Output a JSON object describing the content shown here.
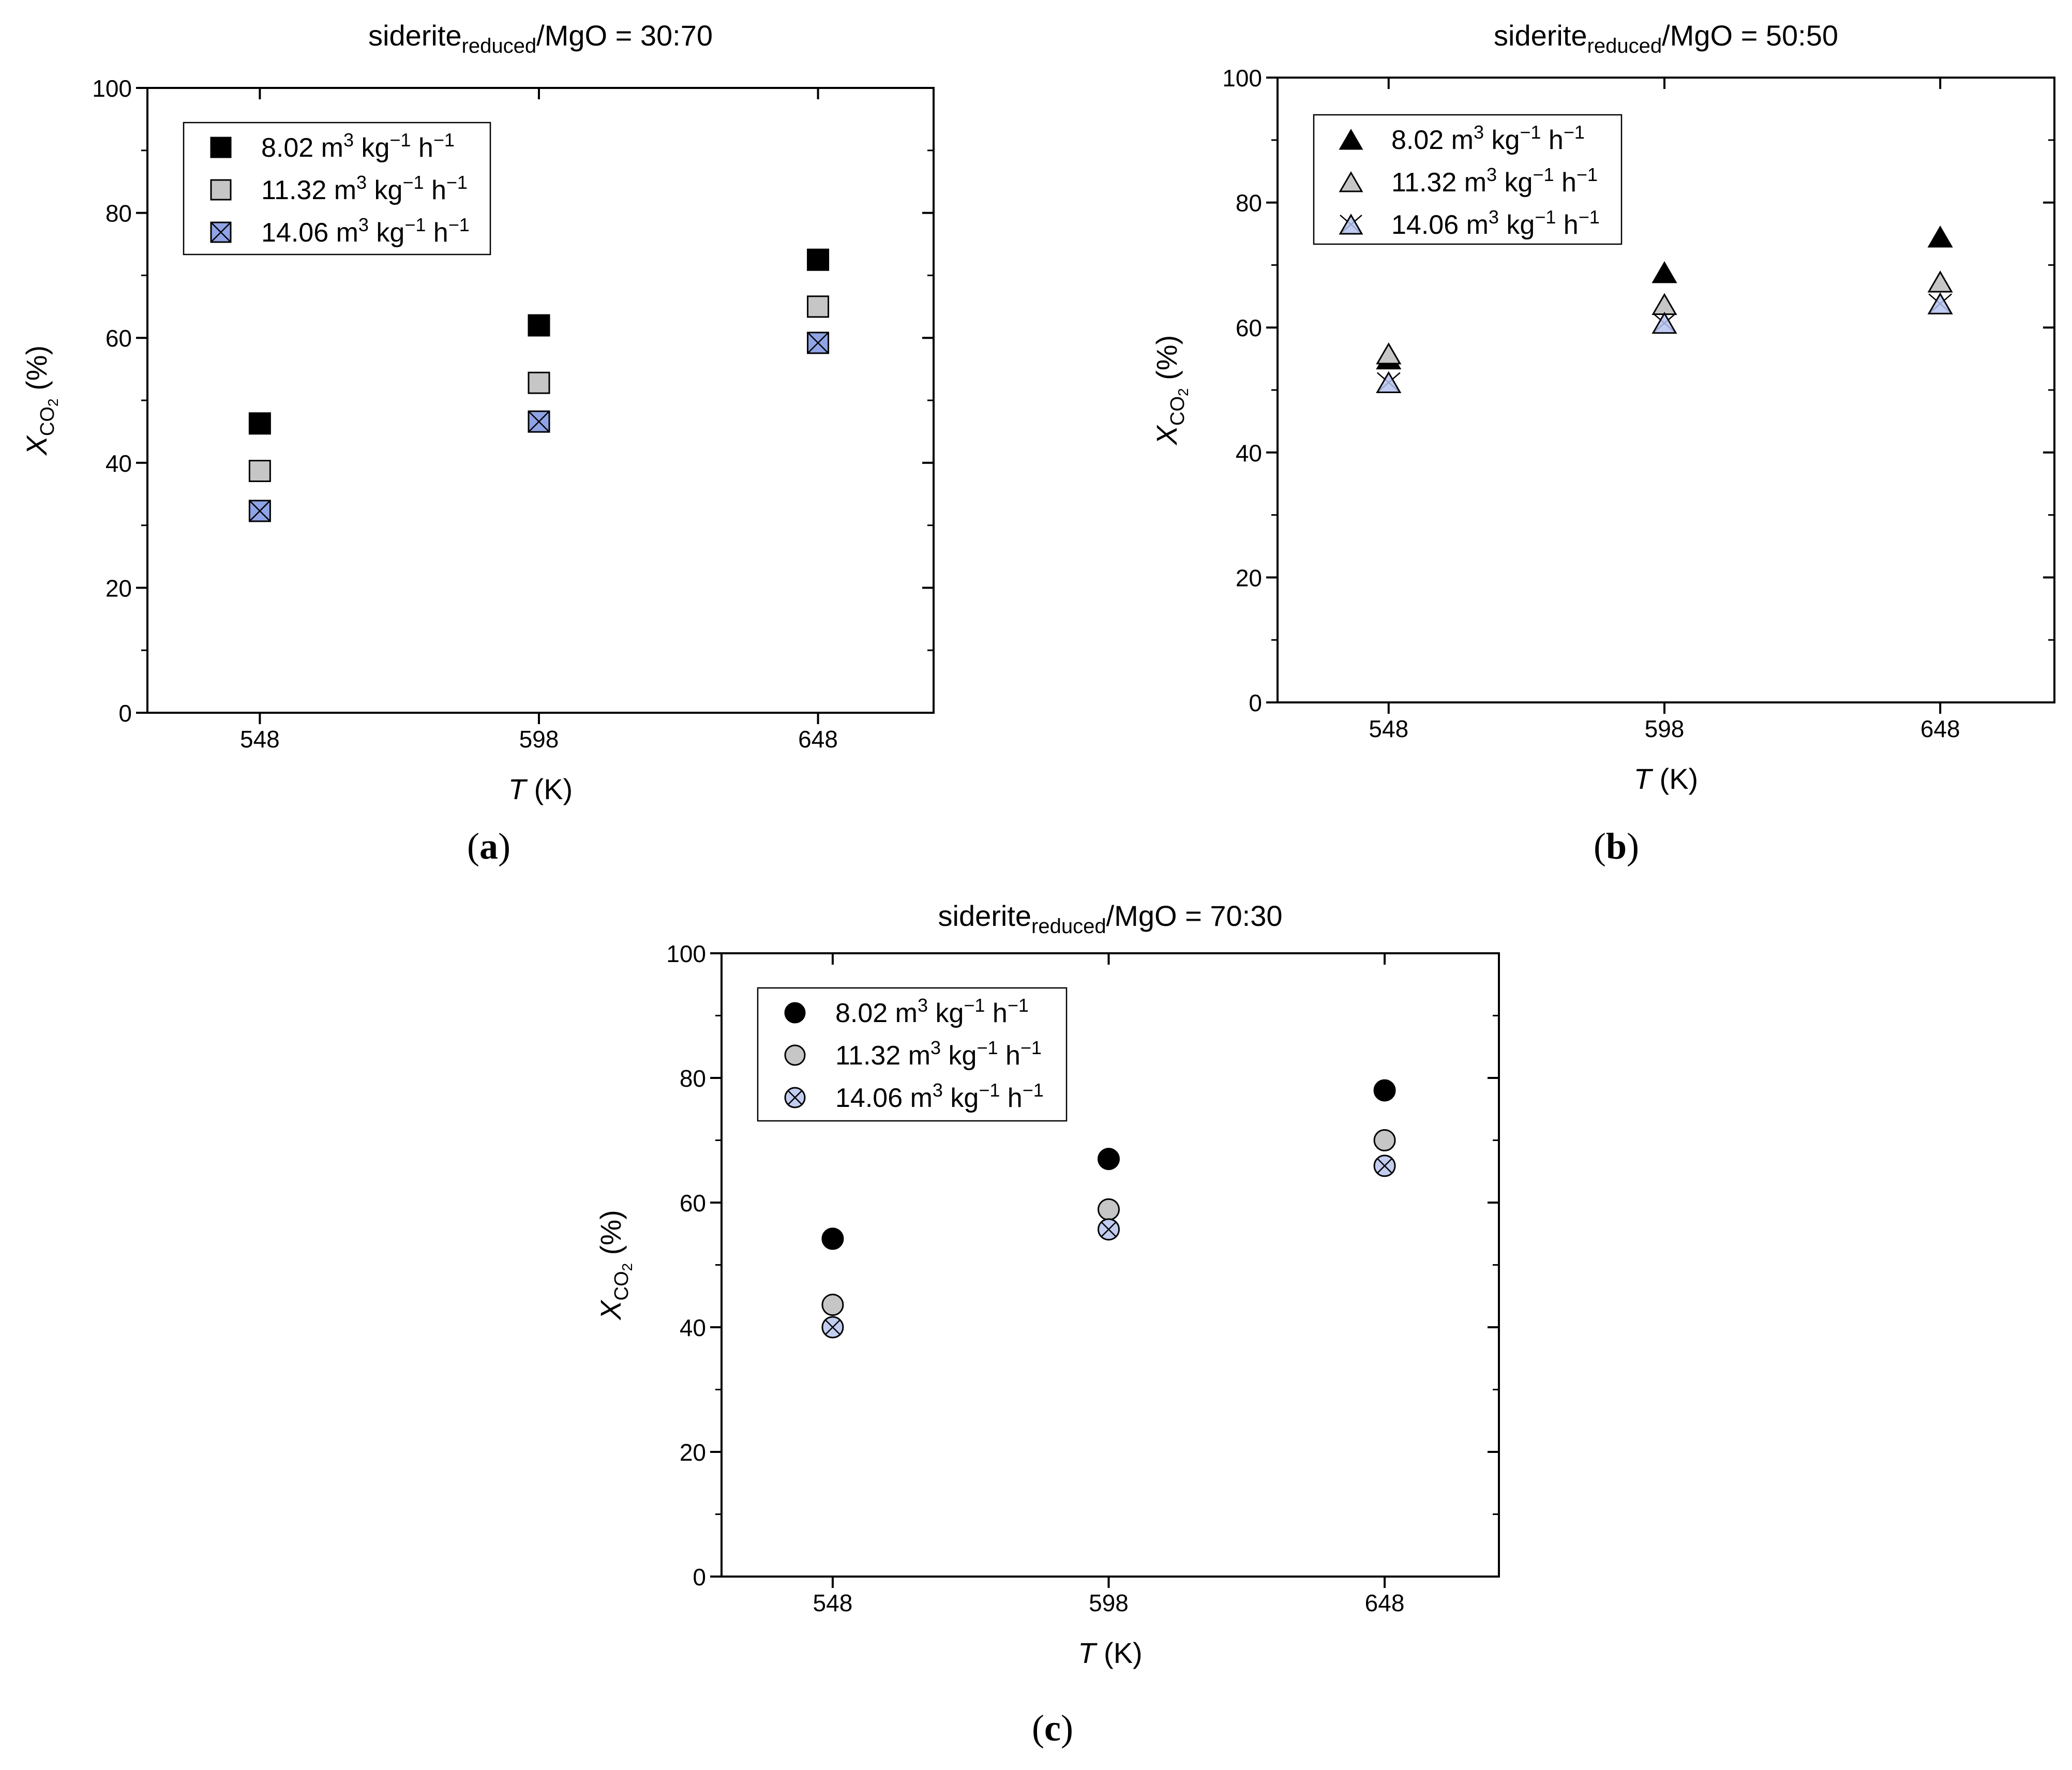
{
  "chart_data": [
    {
      "type": "scatter",
      "panel_label": "a",
      "title": {
        "main": "siderite",
        "sub": "reduced",
        "tail": "/MgO = 30:70"
      },
      "xlabel": {
        "var": "T",
        "unit": " (K)"
      },
      "ylabel": {
        "var": "X",
        "sub": "CO",
        "subsub": "2",
        "unit": " (%)"
      },
      "categories": [
        "548",
        "598",
        "648"
      ],
      "ylim": [
        0,
        100
      ],
      "yticks": [
        "0",
        "20",
        "40",
        "60",
        "80",
        "100"
      ],
      "marker": "square",
      "legend_position": "top-left",
      "series": [
        {
          "legend": {
            "value": "8.02",
            "u1": " m",
            "e1": "3",
            "u2": " kg",
            "e2": "−1",
            "u3": " h",
            "e3": "−1"
          },
          "style": "black",
          "values": [
            46.3,
            62.0,
            72.5
          ]
        },
        {
          "legend": {
            "value": "11.32",
            "u1": " m",
            "e1": "3",
            "u2": " kg",
            "e2": "−1",
            "u3": " h",
            "e3": "−1"
          },
          "style": "gray",
          "values": [
            38.7,
            52.8,
            65.0
          ]
        },
        {
          "legend": {
            "value": "14.06",
            "u1": " m",
            "e1": "3",
            "u2": " kg",
            "e2": "−1",
            "u3": " h",
            "e3": "−1"
          },
          "style": "blue-cross",
          "values": [
            32.3,
            46.6,
            59.2
          ]
        }
      ]
    },
    {
      "type": "scatter",
      "panel_label": "b",
      "title": {
        "main": "siderite",
        "sub": "reduced",
        "tail": "/MgO = 50:50"
      },
      "xlabel": {
        "var": "T",
        "unit": " (K)"
      },
      "ylabel": {
        "var": "X",
        "sub": "CO",
        "subsub": "2",
        "unit": " (%)"
      },
      "categories": [
        "548",
        "598",
        "648"
      ],
      "ylim": [
        0,
        100
      ],
      "yticks": [
        "0",
        "20",
        "40",
        "60",
        "80",
        "100"
      ],
      "marker": "triangle",
      "legend_position": "top-left",
      "series": [
        {
          "legend": {
            "value": "8.02",
            "u1": " m",
            "e1": "3",
            "u2": " kg",
            "e2": "−1",
            "u3": " h",
            "e3": "−1"
          },
          "style": "black",
          "values": [
            55.0,
            68.8,
            74.5
          ]
        },
        {
          "legend": {
            "value": "11.32",
            "u1": " m",
            "e1": "3",
            "u2": " kg",
            "e2": "−1",
            "u3": " h",
            "e3": "−1"
          },
          "style": "gray",
          "values": [
            55.8,
            63.7,
            67.3
          ]
        },
        {
          "legend": {
            "value": "14.06",
            "u1": " m",
            "e1": "3",
            "u2": " kg",
            "e2": "−1",
            "u3": " h",
            "e3": "−1"
          },
          "style": "blue-cross",
          "values": [
            51.2,
            60.7,
            63.8
          ]
        }
      ]
    },
    {
      "type": "scatter",
      "panel_label": "c",
      "title": {
        "main": "siderite",
        "sub": "reduced",
        "tail": "/MgO = 70:30"
      },
      "xlabel": {
        "var": "T",
        "unit": " (K)"
      },
      "ylabel": {
        "var": "X",
        "sub": "CO",
        "subsub": "2",
        "unit": " (%)"
      },
      "categories": [
        "548",
        "598",
        "648"
      ],
      "ylim": [
        0,
        100
      ],
      "yticks": [
        "0",
        "20",
        "40",
        "60",
        "80",
        "100"
      ],
      "marker": "circle",
      "legend_position": "top-left",
      "series": [
        {
          "legend": {
            "value": "8.02",
            "u1": " m",
            "e1": "3",
            "u2": " kg",
            "e2": "−1",
            "u3": " h",
            "e3": "−1"
          },
          "style": "black",
          "values": [
            54.2,
            67.0,
            78.0
          ]
        },
        {
          "legend": {
            "value": "11.32",
            "u1": " m",
            "e1": "3",
            "u2": " kg",
            "e2": "−1",
            "u3": " h",
            "e3": "−1"
          },
          "style": "gray",
          "values": [
            43.6,
            58.9,
            70.0
          ]
        },
        {
          "legend": {
            "value": "14.06",
            "u1": " m",
            "e1": "3",
            "u2": " kg",
            "e2": "−1",
            "u3": " h",
            "e3": "−1"
          },
          "style": "blue-cross",
          "values": [
            40.0,
            55.7,
            65.9
          ]
        }
      ]
    }
  ],
  "colors": {
    "black": "#000000",
    "gray": "#c6c6c6",
    "blue": "#8fa3e6",
    "blue_tri": "#b5c3ee",
    "blue_circle": "#c2cdf0",
    "axis": "#000000"
  }
}
